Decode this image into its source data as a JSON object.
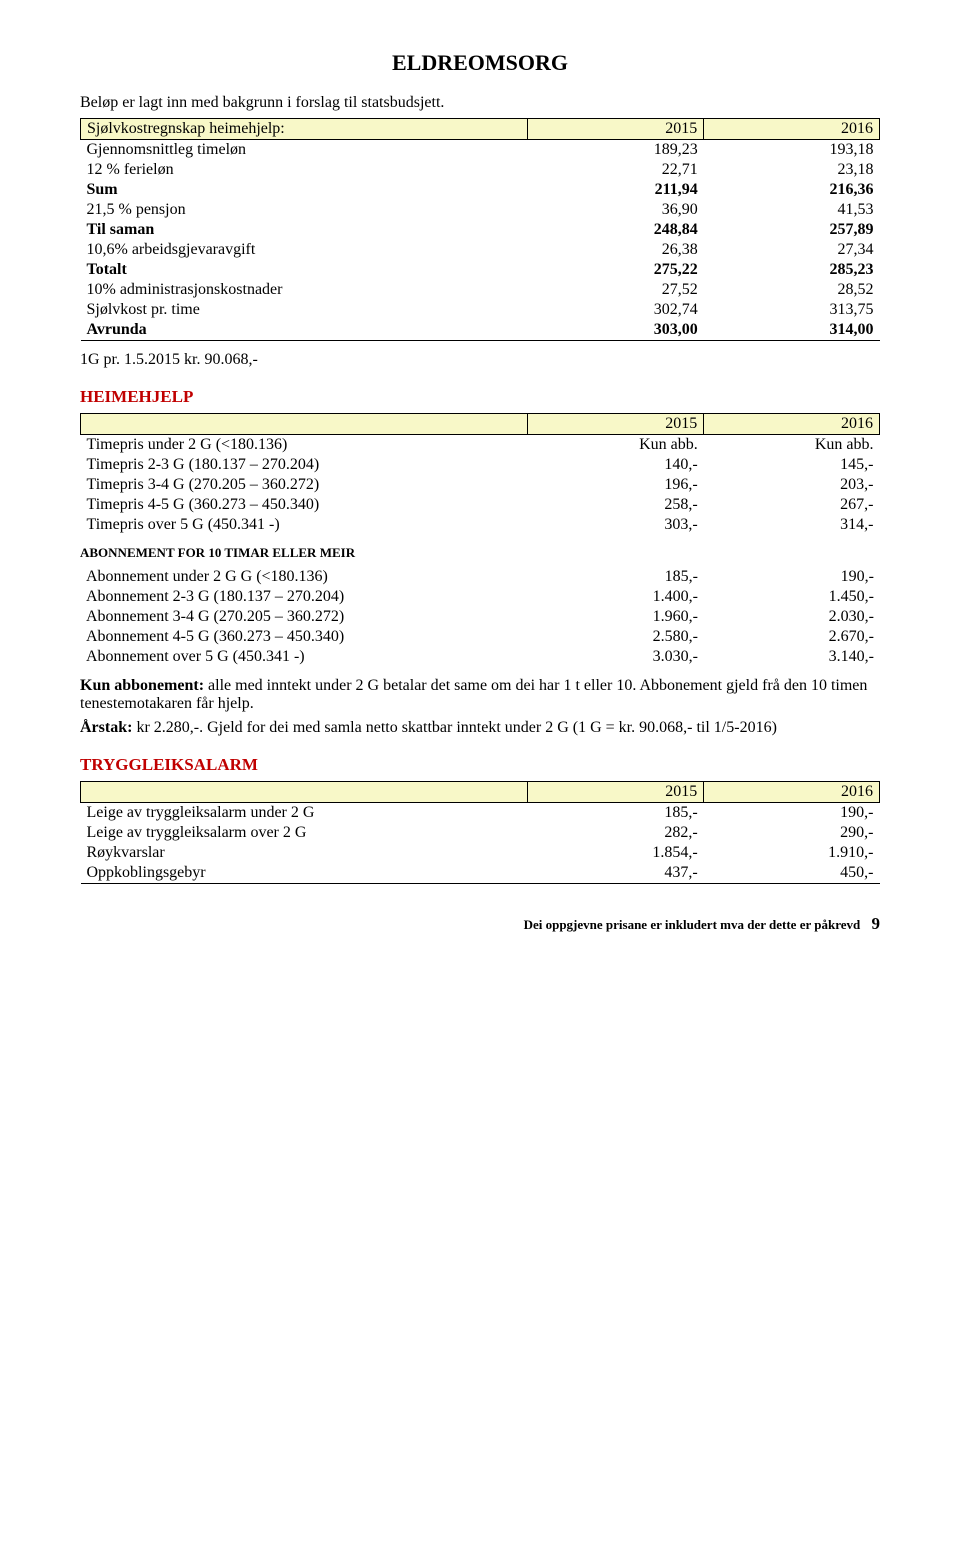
{
  "title": "ELDREOMSORG",
  "intro": "Beløp er lagt inn med bakgrunn i forslag til statsbudsjett.",
  "colors": {
    "header_bg": "#f8f8c8",
    "red": "#c00000",
    "text": "#000000"
  },
  "sj_table": {
    "title": "Sjølvkostregnskap heimehjelp:",
    "years": [
      "2015",
      "2016"
    ],
    "rows": [
      {
        "label": "Gjennomsnittleg timeløn",
        "v1": "189,23",
        "v2": "193,18"
      },
      {
        "label": "12 % ferieløn",
        "v1": "22,71",
        "v2": "23,18"
      },
      {
        "label": "Sum",
        "v1": "211,94",
        "v2": "216,36",
        "bold": true
      },
      {
        "label": "21,5 % pensjon",
        "v1": "36,90",
        "v2": "41,53"
      },
      {
        "label": "Til saman",
        "v1": "248,84",
        "v2": "257,89",
        "bold": true
      },
      {
        "label": "10,6% arbeidsgjevaravgift",
        "v1": "26,38",
        "v2": "27,34"
      },
      {
        "label": "Totalt",
        "v1": "275,22",
        "v2": "285,23",
        "bold": true
      },
      {
        "label": "10% administrasjonskostnader",
        "v1": "27,52",
        "v2": "28,52"
      },
      {
        "label": "Sjølvkost pr. time",
        "v1": "302,74",
        "v2": "313,75"
      },
      {
        "label": "Avrunda",
        "v1": "303,00",
        "v2": "314,00",
        "bold": true
      }
    ]
  },
  "g_note": "1G pr. 1.5.2015 kr. 90.068,-",
  "heimehjelp": {
    "title": "HEIMEHJELP",
    "years": [
      "2015",
      "2016"
    ],
    "rows": [
      {
        "label": "Timepris under 2 G (<180.136)",
        "v1": "Kun abb.",
        "v2": "Kun abb."
      },
      {
        "label": "Timepris 2-3 G (180.137 – 270.204)",
        "v1": "140,-",
        "v2": "145,-"
      },
      {
        "label": "Timepris 3-4 G (270.205 – 360.272)",
        "v1": "196,-",
        "v2": "203,-"
      },
      {
        "label": "Timepris 4-5 G (360.273 – 450.340)",
        "v1": "258,-",
        "v2": "267,-"
      },
      {
        "label": "Timepris over 5 G (450.341 -)",
        "v1": "303,-",
        "v2": "314,-"
      }
    ]
  },
  "abonnement": {
    "title": "ABONNEMENT FOR 10 TIMAR ELLER MEIR",
    "rows": [
      {
        "label": "Abonnement under 2 G G (<180.136)",
        "v1": "185,-",
        "v2": "190,-"
      },
      {
        "label": "Abonnement 2-3 G (180.137 – 270.204)",
        "v1": "1.400,-",
        "v2": "1.450,-"
      },
      {
        "label": "Abonnement 3-4 G (270.205 – 360.272)",
        "v1": "1.960,-",
        "v2": "2.030,-"
      },
      {
        "label": "Abonnement 4-5 G (360.273 – 450.340)",
        "v1": "2.580,-",
        "v2": "2.670,-"
      },
      {
        "label": "Abonnement over 5 G (450.341 -)",
        "v1": "3.030,-",
        "v2": "3.140,-"
      }
    ]
  },
  "kun_abb_label": "Kun abbonement:",
  "kun_abb_text": " alle med inntekt under 2 G betalar det same om dei har 1 t eller 10. Abbonement gjeld frå den 10 timen tenestemotakaren får hjelp.",
  "arstak_label": "Årstak:",
  "arstak_text": " kr 2.280,-.  Gjeld for dei med samla netto skattbar inntekt under 2 G (1 G = kr. 90.068,- til 1/5-2016)",
  "trygg": {
    "title": "TRYGGLEIKSALARM",
    "years": [
      "2015",
      "2016"
    ],
    "rows": [
      {
        "label": "Leige av tryggleiksalarm under 2 G",
        "v1": "185,-",
        "v2": "190,-"
      },
      {
        "label": "Leige av tryggleiksalarm over 2 G",
        "v1": "282,-",
        "v2": "290,-"
      },
      {
        "label": "Røykvarslar",
        "v1": "1.854,-",
        "v2": "1.910,-"
      },
      {
        "label": "Oppkoblingsgebyr",
        "v1": "437,-",
        "v2": "450,-"
      }
    ]
  },
  "footer": {
    "text": "Dei oppgjevne prisane er inkludert mva der dette er påkrevd",
    "page": "9"
  }
}
